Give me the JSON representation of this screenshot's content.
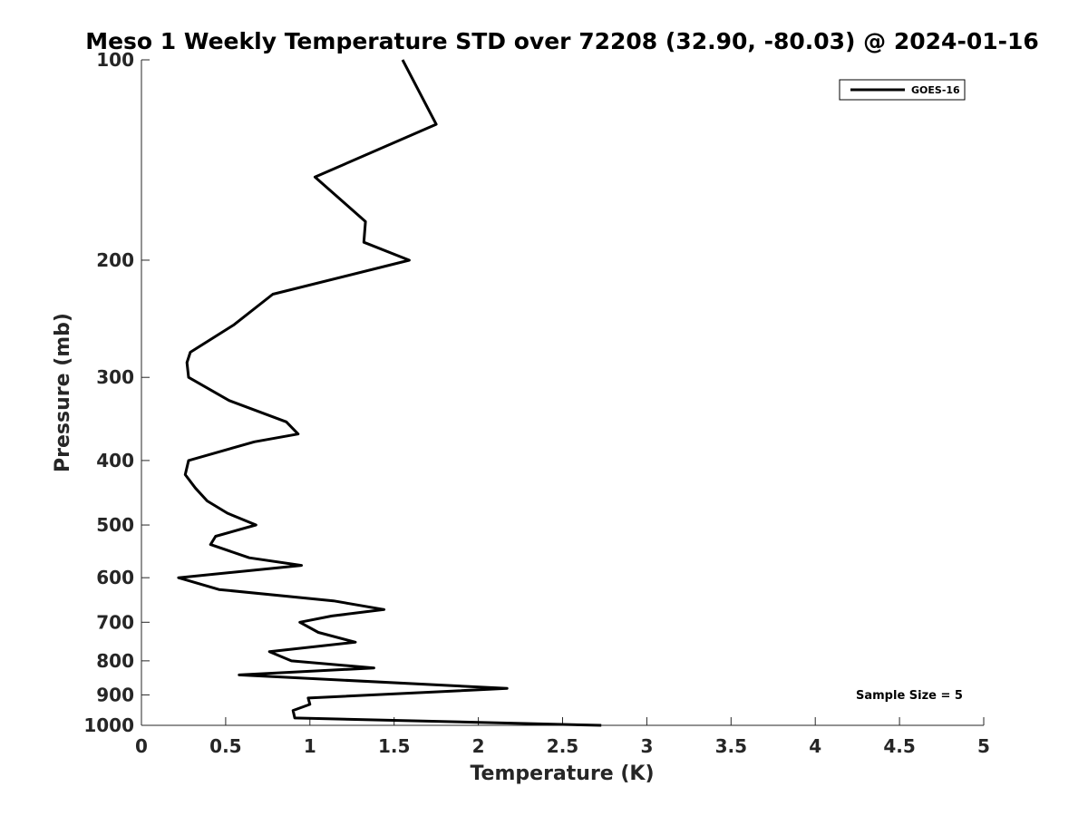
{
  "chart_data": {
    "type": "line",
    "title": "Meso 1 Weekly Temperature STD over 72208 (32.90, -80.03) @ 2024-01-16",
    "xlabel": "Temperature (K)",
    "ylabel": "Pressure (mb)",
    "xlim": [
      0,
      5
    ],
    "ylim": [
      100,
      1000
    ],
    "y_scale": "log",
    "y_reversed": true,
    "grid": false,
    "legend_position": "top-right",
    "x_ticks": [
      0,
      0.5,
      1,
      1.5,
      2,
      2.5,
      3,
      3.5,
      4,
      4.5,
      5
    ],
    "x_tick_labels": [
      "0",
      "0.5",
      "1",
      "1.5",
      "2",
      "2.5",
      "3",
      "3.5",
      "4",
      "4.5",
      "5"
    ],
    "y_ticks": [
      100,
      200,
      300,
      400,
      500,
      600,
      700,
      800,
      900,
      1000
    ],
    "y_tick_labels": [
      "100",
      "200",
      "300",
      "400",
      "500",
      "600",
      "700",
      "800",
      "900",
      "1000"
    ],
    "series": [
      {
        "name": "GOES-16",
        "color": "#000000",
        "points": [
          [
            1.55,
            100
          ],
          [
            1.75,
            125
          ],
          [
            1.03,
            150
          ],
          [
            1.33,
            175
          ],
          [
            1.32,
            188
          ],
          [
            1.59,
            200
          ],
          [
            0.78,
            225
          ],
          [
            0.55,
            250
          ],
          [
            0.29,
            275
          ],
          [
            0.27,
            285
          ],
          [
            0.28,
            300
          ],
          [
            0.52,
            325
          ],
          [
            0.86,
            350
          ],
          [
            0.93,
            365
          ],
          [
            0.67,
            375
          ],
          [
            0.28,
            400
          ],
          [
            0.26,
            420
          ],
          [
            0.32,
            440
          ],
          [
            0.39,
            460
          ],
          [
            0.51,
            480
          ],
          [
            0.68,
            500
          ],
          [
            0.44,
            520
          ],
          [
            0.41,
            535
          ],
          [
            0.64,
            560
          ],
          [
            0.95,
            575
          ],
          [
            0.22,
            600
          ],
          [
            0.46,
            625
          ],
          [
            1.14,
            650
          ],
          [
            1.44,
            670
          ],
          [
            1.13,
            685
          ],
          [
            0.94,
            700
          ],
          [
            1.05,
            725
          ],
          [
            1.27,
            750
          ],
          [
            0.76,
            775
          ],
          [
            0.89,
            800
          ],
          [
            1.38,
            820
          ],
          [
            0.58,
            840
          ],
          [
            2.17,
            880
          ],
          [
            0.99,
            910
          ],
          [
            1.0,
            930
          ],
          [
            0.9,
            950
          ],
          [
            0.91,
            975
          ],
          [
            2.73,
            1000
          ]
        ]
      }
    ],
    "annotations": [
      "Sample Size = 5"
    ]
  }
}
